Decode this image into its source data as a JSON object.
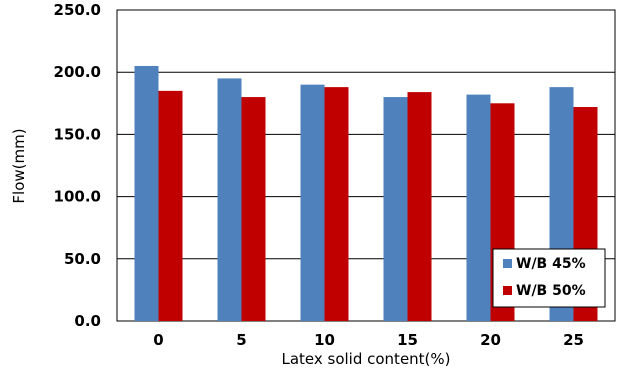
{
  "chart_data": {
    "type": "bar",
    "title": "",
    "xlabel": "Latex solid content(%)",
    "ylabel": "Flow(mm)",
    "categories": [
      "0",
      "5",
      "10",
      "15",
      "20",
      "25"
    ],
    "ylim": [
      0,
      250
    ],
    "yticks": [
      "0.0",
      "50.0",
      "100.0",
      "150.0",
      "200.0",
      "250.0"
    ],
    "grid": true,
    "legend_position": "bottom-right",
    "series": [
      {
        "name": "W/B 45%",
        "color": "#4f81bd",
        "values": [
          205,
          195,
          190,
          180,
          182,
          188
        ]
      },
      {
        "name": "W/B 50%",
        "color": "#c00000",
        "values": [
          185,
          180,
          188,
          184,
          175,
          172
        ]
      }
    ]
  }
}
